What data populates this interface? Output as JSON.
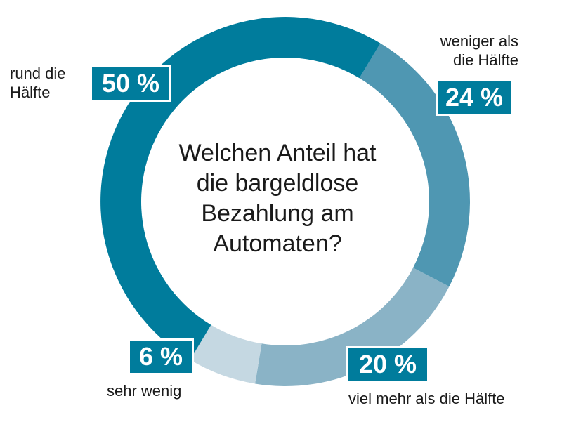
{
  "chart_data": {
    "type": "pie",
    "title": "Welchen Anteil hat die bargeldlose Bezahlung am Automaten?",
    "title_lines": [
      "Welchen Anteil hat",
      "die bargeldlose",
      "Bezahlung am",
      "Automaten?"
    ],
    "categories": [
      "weniger als die Hälfte",
      "viel mehr als die Hälfte",
      "sehr wenig",
      "rund die Hälfte"
    ],
    "values": [
      24,
      20,
      6,
      50
    ],
    "value_labels": [
      "24 %",
      "20 %",
      "6 %",
      "50 %"
    ],
    "label_lines": [
      [
        "weniger als",
        "die Hälfte"
      ],
      [
        "viel mehr als die Hälfte"
      ],
      [
        "sehr wenig"
      ],
      [
        "rund die",
        "Hälfte"
      ]
    ],
    "colors": [
      "#4f97b2",
      "#8ab3c6",
      "#c5d8e2",
      "#007c9c"
    ],
    "style": "donut"
  }
}
